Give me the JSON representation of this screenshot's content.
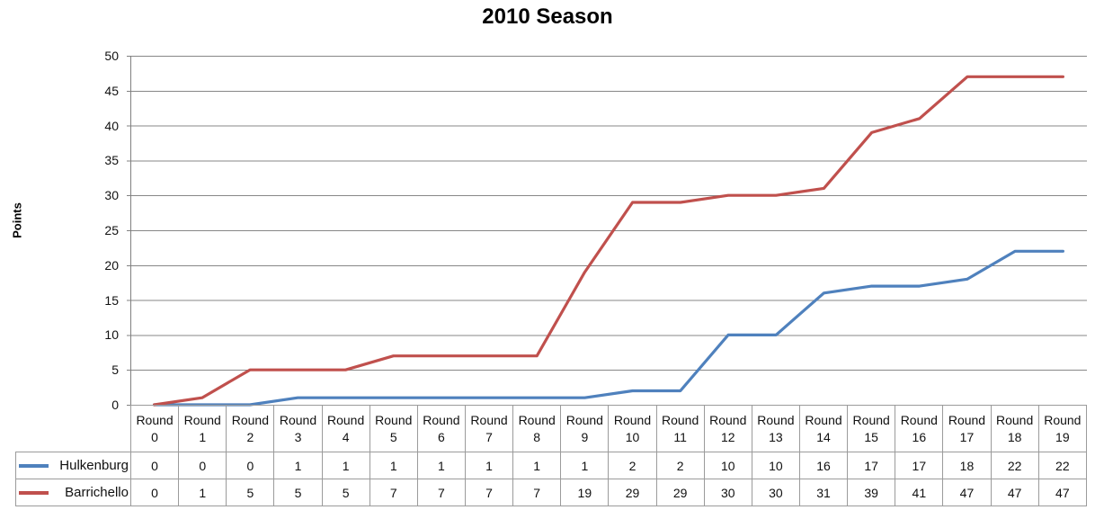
{
  "chart_data": {
    "type": "line",
    "title": "2010 Season",
    "xlabel": "",
    "ylabel": "Points",
    "ylim": [
      0,
      50
    ],
    "ytick_step": 5,
    "grid": true,
    "legend_position": "table-left",
    "data_table_shown": true,
    "categories": [
      "Round 0",
      "Round 1",
      "Round 2",
      "Round 3",
      "Round 4",
      "Round 5",
      "Round 6",
      "Round 7",
      "Round 8",
      "Round 9",
      "Round 10",
      "Round 11",
      "Round 12",
      "Round 13",
      "Round 14",
      "Round 15",
      "Round 16",
      "Round 17",
      "Round 18",
      "Round 19"
    ],
    "series": [
      {
        "name": "Hulkenburg",
        "color": "#4F81BD",
        "values": [
          0,
          0,
          0,
          1,
          1,
          1,
          1,
          1,
          1,
          1,
          2,
          2,
          10,
          10,
          16,
          17,
          17,
          18,
          22,
          22
        ]
      },
      {
        "name": "Barrichello",
        "color": "#C0504D",
        "values": [
          0,
          1,
          5,
          5,
          5,
          7,
          7,
          7,
          7,
          19,
          29,
          29,
          30,
          30,
          31,
          39,
          41,
          47,
          47,
          47
        ]
      }
    ],
    "colors": {
      "gridline": "#878787",
      "axis": "#808080",
      "table_border": "#9b9b9b",
      "text": "#000000"
    }
  }
}
